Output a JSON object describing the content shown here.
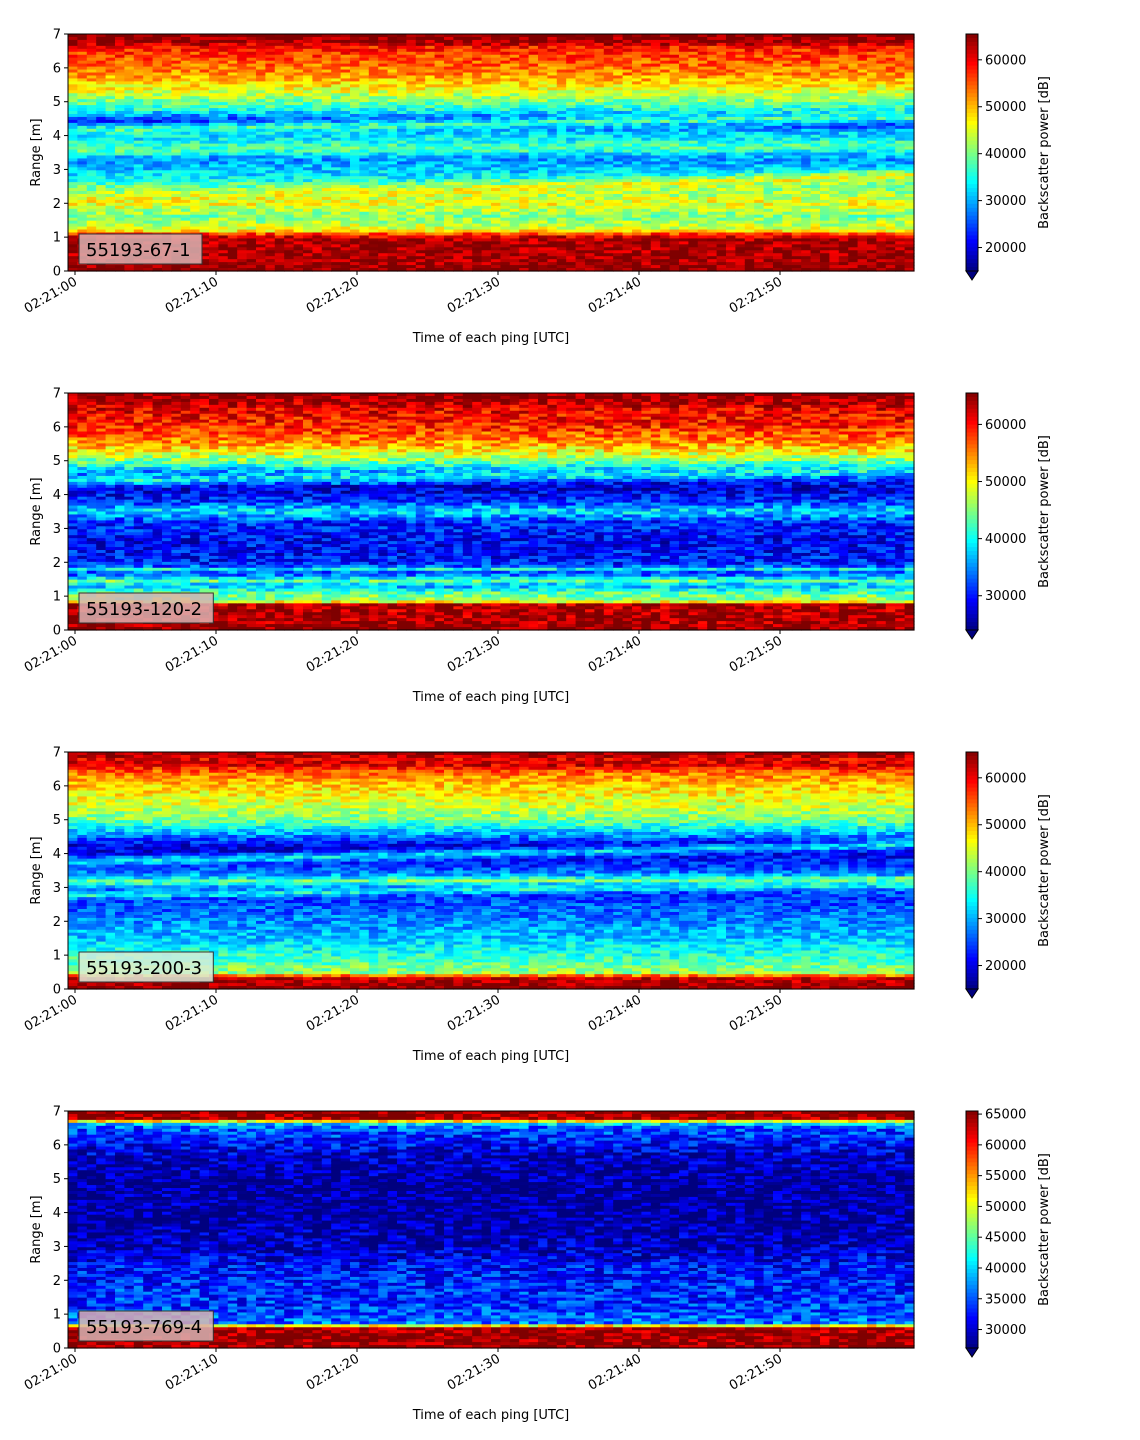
{
  "colors": {
    "jet": [
      "#00007f",
      "#0000ff",
      "#007fff",
      "#00ffff",
      "#7fff7f",
      "#ffff00",
      "#ff7f00",
      "#ff0000",
      "#7f0000"
    ],
    "label_box_fill": "#d9b3b3",
    "label_box_fill_alt": "#d9ecd9"
  },
  "chart_data": [
    {
      "type": "heatmap",
      "panel_label": "55193-67-1",
      "xlabel": "Time of each ping [UTC]",
      "ylabel": "Range [m]",
      "x_ticks": [
        "02:21:00",
        "02:21:10",
        "02:21:20",
        "02:21:30",
        "02:21:40",
        "02:21:50"
      ],
      "x_range_seconds": [
        0,
        60
      ],
      "ylim": [
        0,
        7
      ],
      "y_ticks": [
        "0",
        "1",
        "2",
        "3",
        "4",
        "5",
        "6",
        "7"
      ],
      "colorbar_label": "Backscatter power [dB]",
      "colorbar_ticks": [
        "20000",
        "30000",
        "40000",
        "50000",
        "60000"
      ],
      "colorbar_range": [
        15000,
        65500
      ],
      "colorbar_extend": "min",
      "profile": [
        [
          0.0,
          65500
        ],
        [
          0.22,
          64000
        ],
        [
          0.9,
          63500
        ],
        [
          1.05,
          60000
        ],
        [
          1.2,
          46000
        ],
        [
          1.6,
          40000
        ],
        [
          2.0,
          46000
        ],
        [
          2.4,
          41000
        ],
        [
          2.8,
          33000
        ],
        [
          3.3,
          29000
        ],
        [
          3.7,
          36000
        ],
        [
          4.1,
          31000
        ],
        [
          4.4,
          22000
        ],
        [
          4.8,
          36000
        ],
        [
          5.3,
          45000
        ],
        [
          5.8,
          52000
        ],
        [
          6.2,
          55000
        ],
        [
          6.6,
          58000
        ],
        [
          6.75,
          64000
        ],
        [
          7.0,
          65500
        ]
      ],
      "features": [
        {
          "y_start": 2.05,
          "y_end": 2.8,
          "value": 46000,
          "width": 0.3
        },
        {
          "y_start": 4.15,
          "y_end": 4.55,
          "value": 38000,
          "width": 0.25
        },
        {
          "y_start": 3.55,
          "y_end": 3.7,
          "value": 38000,
          "width": 0.2
        }
      ]
    },
    {
      "type": "heatmap",
      "panel_label": "55193-120-2",
      "xlabel": "Time of each ping [UTC]",
      "ylabel": "Range [m]",
      "x_ticks": [
        "02:21:00",
        "02:21:10",
        "02:21:20",
        "02:21:30",
        "02:21:40",
        "02:21:50"
      ],
      "x_range_seconds": [
        0,
        60
      ],
      "ylim": [
        0,
        7
      ],
      "y_ticks": [
        "0",
        "1",
        "2",
        "3",
        "4",
        "5",
        "6",
        "7"
      ],
      "colorbar_label": "Backscatter power [dB]",
      "colorbar_ticks": [
        "30000",
        "40000",
        "50000",
        "60000"
      ],
      "colorbar_range": [
        24000,
        65500
      ],
      "colorbar_extend": "min",
      "profile": [
        [
          0.0,
          65500
        ],
        [
          0.22,
          64000
        ],
        [
          0.75,
          63500
        ],
        [
          0.85,
          46000
        ],
        [
          1.1,
          43000
        ],
        [
          1.3,
          36000
        ],
        [
          1.45,
          44000
        ],
        [
          1.6,
          34000
        ],
        [
          2.0,
          30000
        ],
        [
          2.6,
          29000
        ],
        [
          3.2,
          31000
        ],
        [
          3.5,
          39000
        ],
        [
          3.8,
          31000
        ],
        [
          4.2,
          27000
        ],
        [
          4.6,
          33000
        ],
        [
          5.0,
          45000
        ],
        [
          5.5,
          54000
        ],
        [
          6.0,
          59000
        ],
        [
          6.5,
          61000
        ],
        [
          6.75,
          64000
        ],
        [
          7.0,
          65500
        ]
      ],
      "features": [
        {
          "y_start": 4.4,
          "y_end": 4.7,
          "value": 40000,
          "width": 0.25
        },
        {
          "y_start": 1.8,
          "y_end": 1.8,
          "value": 40000,
          "width": 0.1
        }
      ]
    },
    {
      "type": "heatmap",
      "panel_label": "55193-200-3",
      "xlabel": "Time of each ping [UTC]",
      "ylabel": "Range [m]",
      "x_ticks": [
        "02:21:00",
        "02:21:10",
        "02:21:20",
        "02:21:30",
        "02:21:40",
        "02:21:50"
      ],
      "x_range_seconds": [
        0,
        60
      ],
      "ylim": [
        0,
        7
      ],
      "y_ticks": [
        "0",
        "1",
        "2",
        "3",
        "4",
        "5",
        "6",
        "7"
      ],
      "colorbar_label": "Backscatter power [dB]",
      "colorbar_ticks": [
        "20000",
        "30000",
        "40000",
        "50000",
        "60000"
      ],
      "colorbar_range": [
        15000,
        65500
      ],
      "colorbar_extend": "min",
      "profile": [
        [
          0.0,
          65500
        ],
        [
          0.15,
          64000
        ],
        [
          0.35,
          62000
        ],
        [
          0.45,
          42000
        ],
        [
          0.8,
          38000
        ],
        [
          1.5,
          31000
        ],
        [
          2.2,
          27000
        ],
        [
          2.8,
          24000
        ],
        [
          3.2,
          34000
        ],
        [
          3.6,
          24000
        ],
        [
          4.2,
          19000
        ],
        [
          4.6,
          30000
        ],
        [
          5.0,
          40000
        ],
        [
          5.5,
          45000
        ],
        [
          6.0,
          49000
        ],
        [
          6.4,
          54000
        ],
        [
          6.6,
          61000
        ],
        [
          6.8,
          60000
        ],
        [
          7.0,
          65500
        ]
      ],
      "features": [
        {
          "y_start": 3.15,
          "y_end": 3.25,
          "value": 40000,
          "width": 0.12
        },
        {
          "y_start": 2.75,
          "y_end": 3.1,
          "value": 35000,
          "width": 0.15
        },
        {
          "y_start": 3.75,
          "y_end": 4.25,
          "value": 33000,
          "width": 0.2
        }
      ]
    },
    {
      "type": "heatmap",
      "panel_label": "55193-769-4",
      "xlabel": "Time of each ping [UTC]",
      "ylabel": "Range [m]",
      "x_ticks": [
        "02:21:00",
        "02:21:10",
        "02:21:20",
        "02:21:30",
        "02:21:40",
        "02:21:50"
      ],
      "x_range_seconds": [
        0,
        60
      ],
      "ylim": [
        0,
        7
      ],
      "y_ticks": [
        "0",
        "1",
        "2",
        "3",
        "4",
        "5",
        "6",
        "7"
      ],
      "colorbar_label": "Backscatter power [dB]",
      "colorbar_ticks": [
        "30000",
        "35000",
        "40000",
        "45000",
        "50000",
        "55000",
        "60000",
        "65000"
      ],
      "colorbar_range": [
        27000,
        65500
      ],
      "colorbar_extend": "min",
      "profile": [
        [
          0.0,
          65500
        ],
        [
          0.2,
          65000
        ],
        [
          0.62,
          64500
        ],
        [
          0.68,
          42000
        ],
        [
          0.75,
          36000
        ],
        [
          1.2,
          34000
        ],
        [
          2.0,
          33000
        ],
        [
          2.5,
          32000
        ],
        [
          3.0,
          29000
        ],
        [
          4.0,
          28000
        ],
        [
          5.0,
          28000
        ],
        [
          5.6,
          29000
        ],
        [
          6.0,
          32000
        ],
        [
          6.5,
          35000
        ],
        [
          6.65,
          42000
        ],
        [
          6.75,
          64000
        ],
        [
          7.0,
          65500
        ]
      ],
      "features": []
    }
  ]
}
